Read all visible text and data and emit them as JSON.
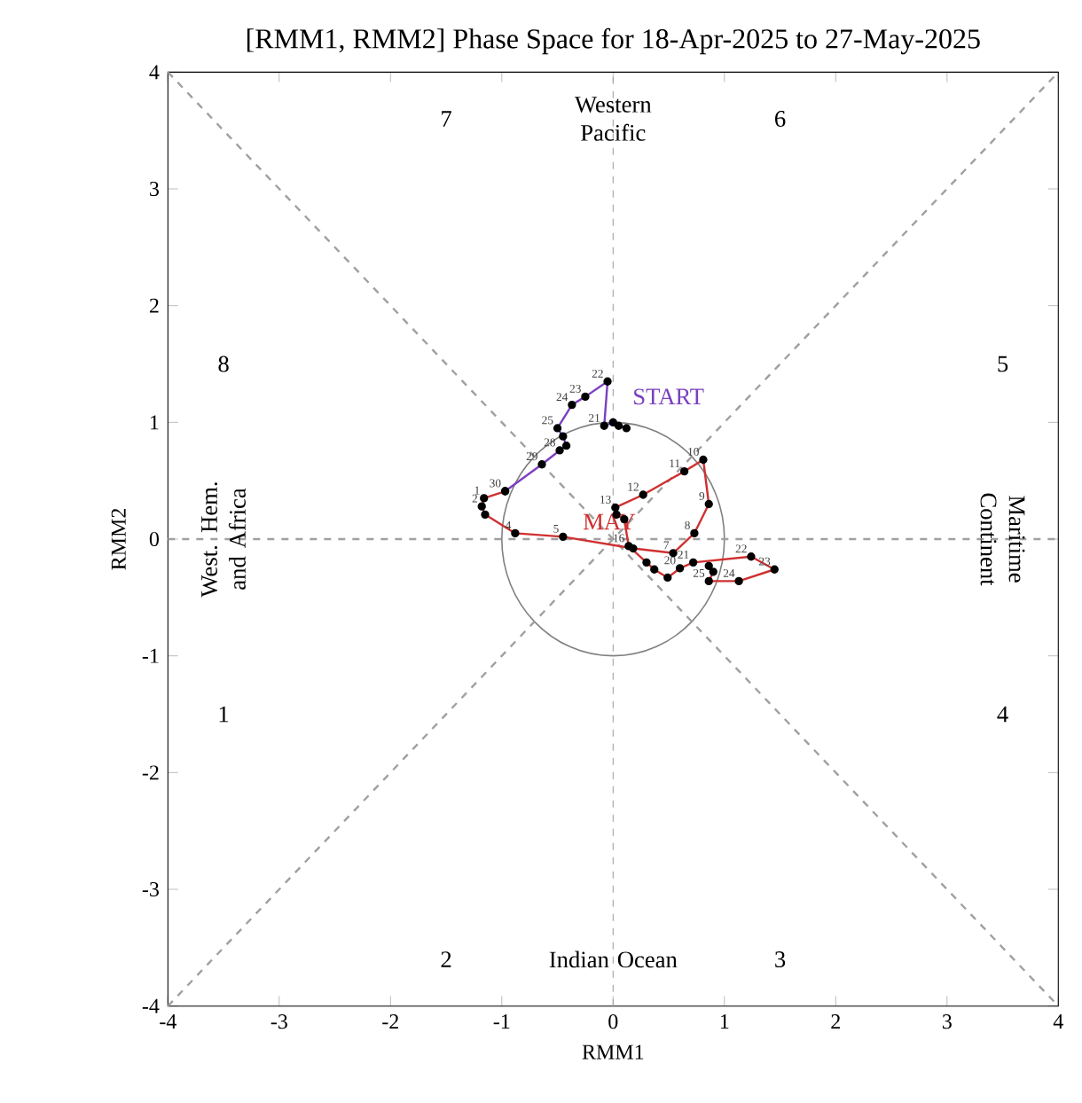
{
  "chart_data": {
    "type": "line",
    "title": "[RMM1, RMM2] Phase Space for 18-Apr-2025 to 27-May-2025",
    "xlabel": "RMM1",
    "ylabel": "RMM2",
    "xlim": [
      -4,
      4
    ],
    "ylim": [
      -4,
      4
    ],
    "xticks": [
      -4,
      -3,
      -2,
      -1,
      0,
      1,
      2,
      3,
      4
    ],
    "yticks": [
      -4,
      -3,
      -2,
      -1,
      0,
      1,
      2,
      3,
      4
    ],
    "grid": false,
    "marker": "circle",
    "ref_lines": [
      {
        "axis": "x",
        "value": 0,
        "line_style": "dashed",
        "color": "#a0a0a0"
      }
    ],
    "series": [
      {
        "color": "#a0a0a0",
        "line_style": "dashed",
        "marker": "none",
        "x": [
          -4,
          4
        ],
        "values": [
          -4,
          4
        ]
      },
      {
        "color": "#a0a0a0",
        "line_style": "dashed",
        "marker": "none",
        "x": [
          -4,
          4
        ],
        "values": [
          4,
          -4
        ]
      },
      {
        "color": "#a0a0a0",
        "line_style": "dashed",
        "marker": "none",
        "x": [
          -4,
          4
        ],
        "values": [
          0,
          0
        ]
      },
      {
        "color": "#7b3fc0",
        "x": [
          0.05,
          0.12,
          0.0,
          -0.08,
          -0.05,
          -0.25,
          -0.37,
          -0.5,
          -0.45,
          -0.42,
          -0.48,
          -0.64,
          -0.97
        ],
        "values": [
          0.97,
          0.95,
          1.0,
          0.97,
          1.35,
          1.22,
          1.15,
          0.95,
          0.88,
          0.8,
          0.76,
          0.64,
          0.41
        ]
      },
      {
        "name": "MAY",
        "color": "#d03030",
        "x": [
          -0.97,
          -1.16,
          -1.18,
          -1.15,
          -0.88,
          -0.45,
          0.18,
          0.54,
          0.73,
          0.86,
          0.81,
          0.64,
          0.27,
          0.02,
          0.03,
          0.1,
          0.14,
          0.3,
          0.37,
          0.49,
          0.6,
          0.72,
          1.24,
          1.45,
          1.13,
          0.86,
          0.9,
          0.86
        ],
        "values": [
          0.41,
          0.35,
          0.28,
          0.21,
          0.05,
          0.02,
          -0.08,
          -0.12,
          0.05,
          0.3,
          0.68,
          0.58,
          0.38,
          0.27,
          0.21,
          0.17,
          -0.06,
          -0.2,
          -0.26,
          -0.33,
          -0.25,
          -0.2,
          -0.15,
          -0.26,
          -0.36,
          -0.36,
          -0.28,
          -0.23
        ]
      }
    ],
    "annotations": [
      "START",
      "7",
      "6",
      "8",
      "5",
      "1",
      "4",
      "2",
      "3",
      "Western Pacific",
      "Indian Ocean",
      "West. Hem. and Africa",
      "Maritime Continent",
      {
        "text": "21",
        "x": -0.08,
        "y": 0.97
      },
      {
        "text": "22",
        "x": -0.05,
        "y": 1.35
      },
      {
        "text": "23",
        "x": -0.25,
        "y": 1.22
      },
      {
        "text": "24",
        "x": -0.37,
        "y": 1.15
      },
      {
        "text": "25",
        "x": -0.5,
        "y": 0.95
      },
      {
        "text": "28",
        "x": -0.48,
        "y": 0.76
      },
      {
        "text": "29",
        "x": -0.64,
        "y": 0.64
      },
      {
        "text": "30",
        "x": -0.97,
        "y": 0.41
      },
      {
        "text": "1",
        "x": -1.16,
        "y": 0.35
      },
      {
        "text": "2",
        "x": -1.18,
        "y": 0.28
      },
      {
        "text": "4",
        "x": -0.88,
        "y": 0.05
      },
      {
        "text": "5",
        "x": -0.45,
        "y": 0.02
      },
      {
        "text": "7",
        "x": 0.54,
        "y": -0.12
      },
      {
        "text": "8",
        "x": 0.73,
        "y": 0.05
      },
      {
        "text": "9",
        "x": 0.86,
        "y": 0.3
      },
      {
        "text": "10",
        "x": 0.81,
        "y": 0.68
      },
      {
        "text": "11",
        "x": 0.64,
        "y": 0.58
      },
      {
        "text": "12",
        "x": 0.27,
        "y": 0.38
      },
      {
        "text": "13",
        "x": 0.02,
        "y": 0.27
      },
      {
        "text": "16",
        "x": 0.14,
        "y": -0.06
      },
      {
        "text": "20",
        "x": 0.6,
        "y": -0.25
      },
      {
        "text": "21",
        "x": 0.72,
        "y": -0.2
      },
      {
        "text": "22",
        "x": 1.24,
        "y": -0.15
      },
      {
        "text": "23",
        "x": 1.45,
        "y": -0.26
      },
      {
        "text": "24",
        "x": 1.13,
        "y": -0.36
      },
      {
        "text": "25",
        "x": 0.86,
        "y": -0.36
      }
    ]
  }
}
